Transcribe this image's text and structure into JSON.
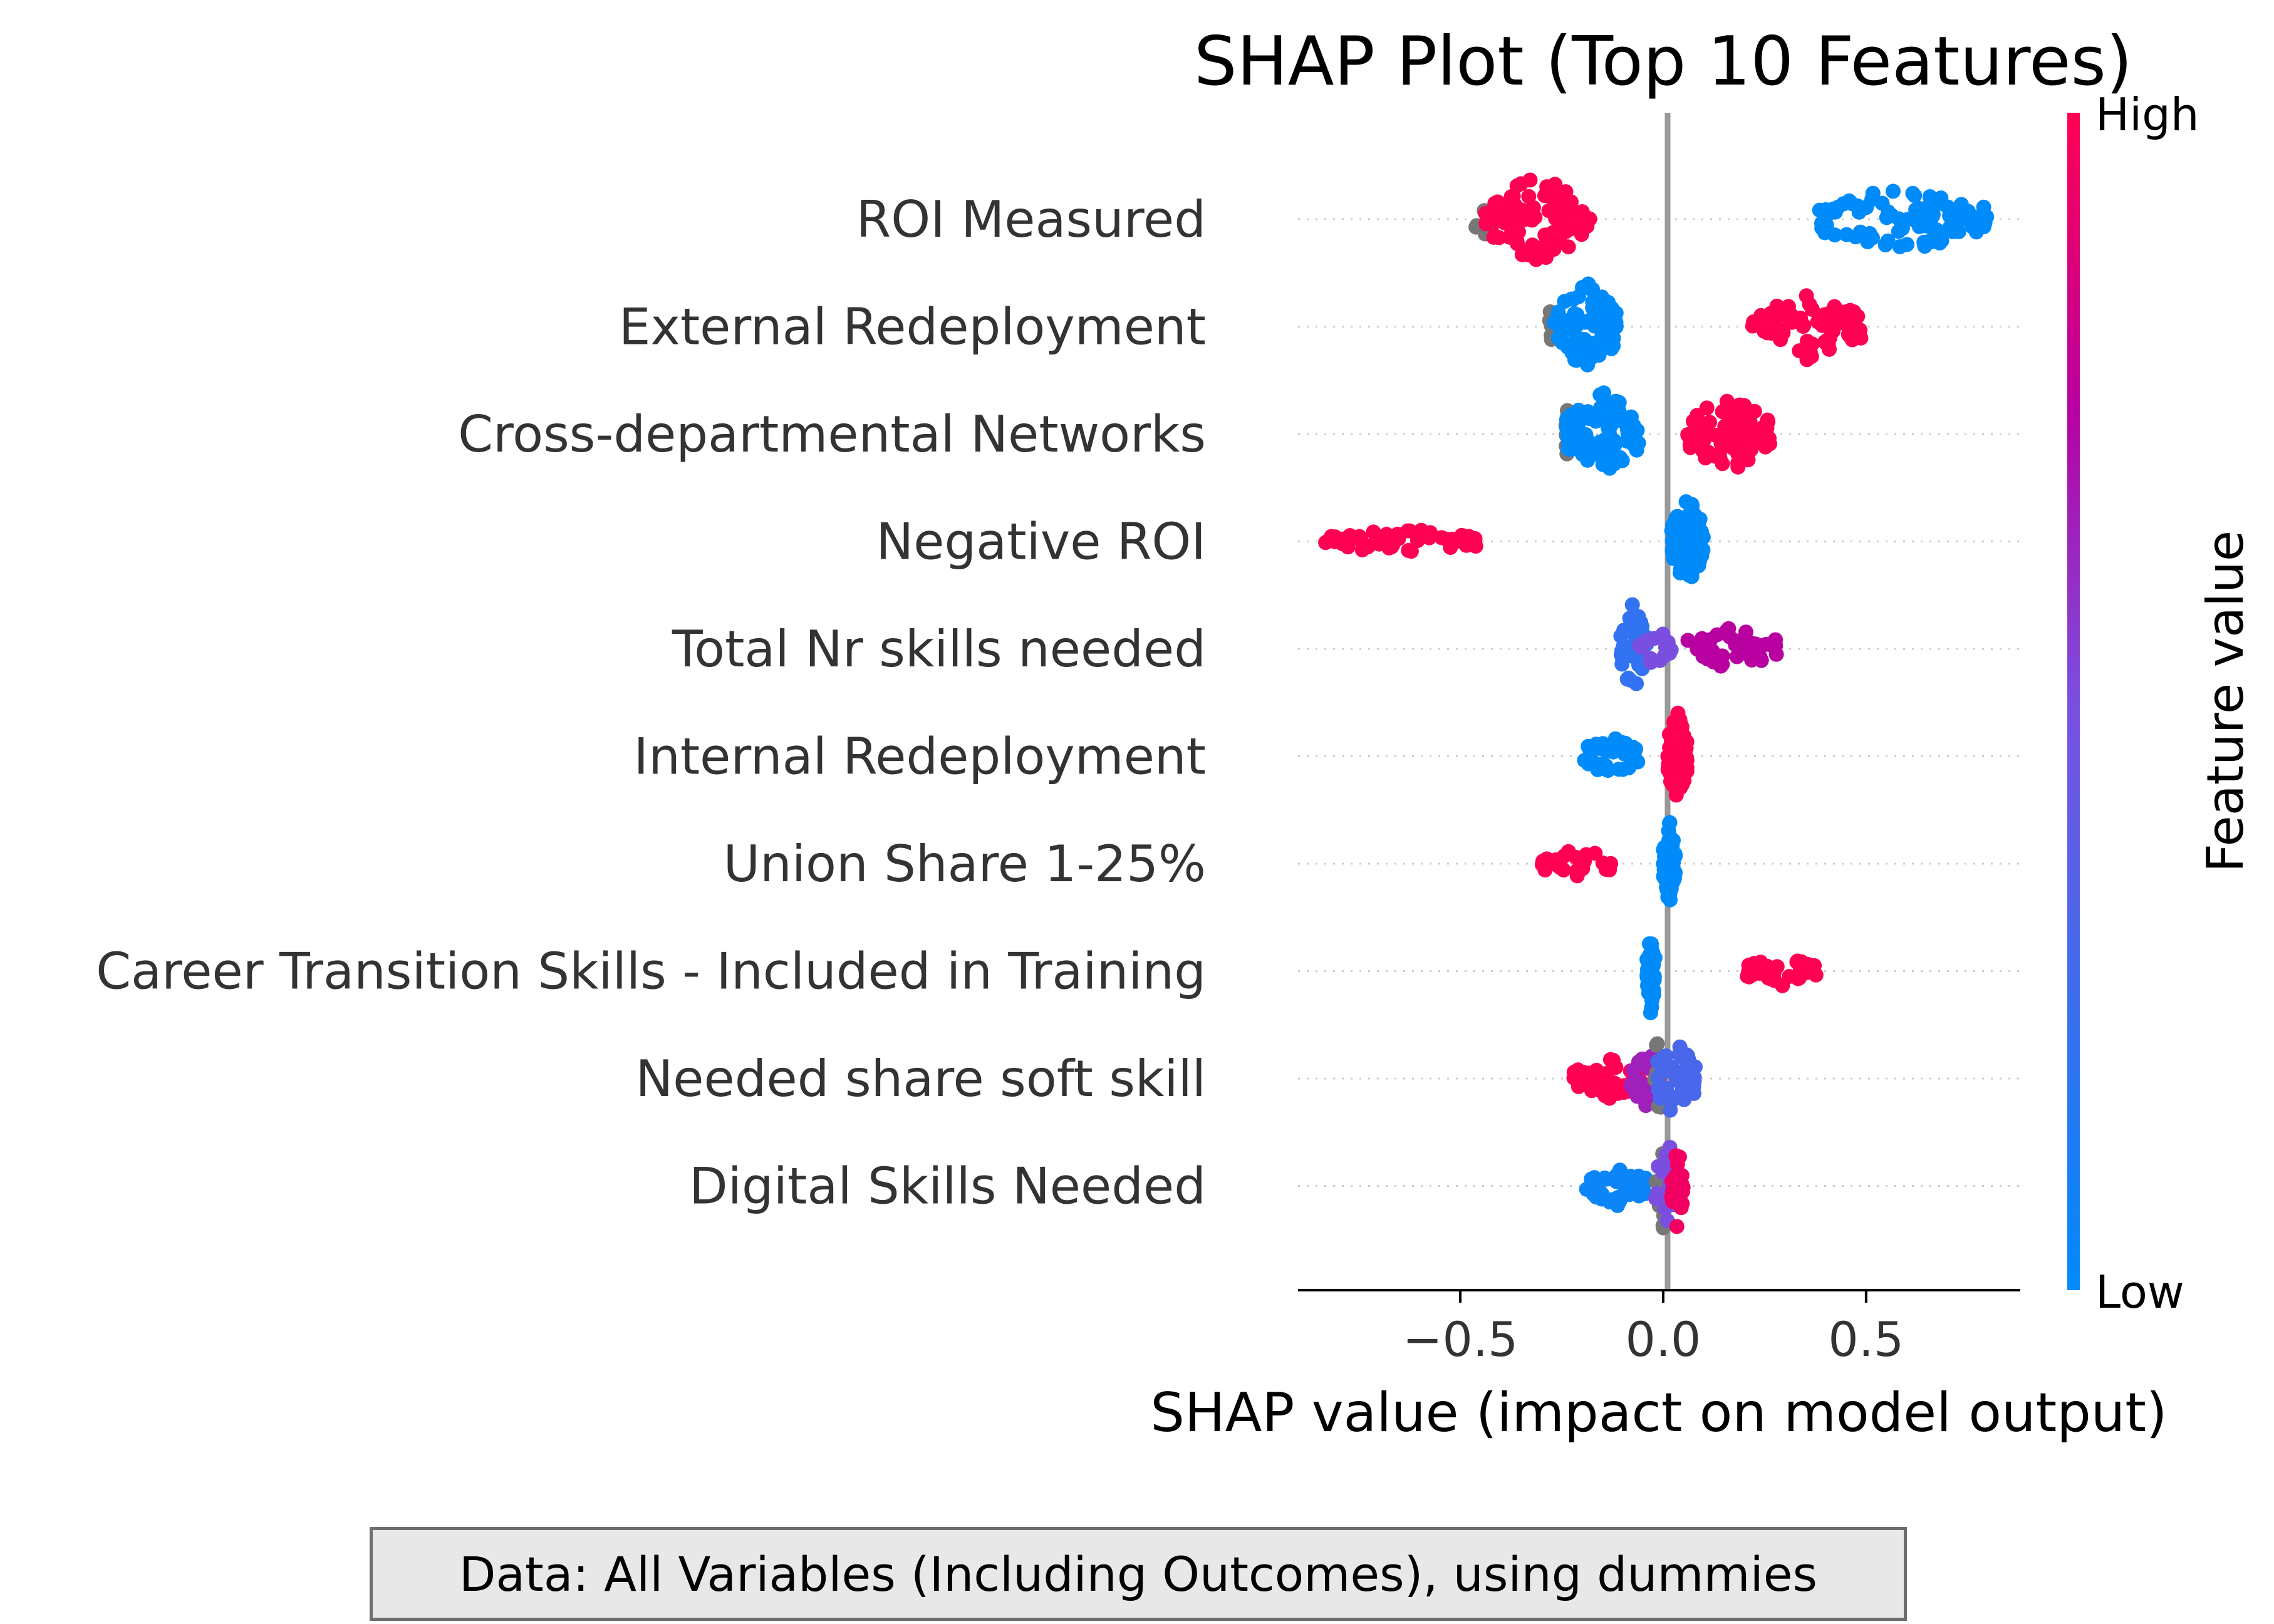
{
  "caption": "Data: All Variables (Including Outcomes), using dummies",
  "chart_data": {
    "type": "scatter",
    "subtype": "shap-beeswarm",
    "title": "SHAP Plot (Top 10 Features)",
    "xlabel": "SHAP value (impact on model output)",
    "xlim": [
      -0.9,
      0.88
    ],
    "xticks": [
      -0.5,
      0.0,
      0.5
    ],
    "xtick_labels": [
      "−0.5",
      "0.0",
      "0.5"
    ],
    "zero_line": 0.0,
    "grid": false,
    "colorbar": {
      "label": "Feature value",
      "high_label": "High",
      "low_label": "Low",
      "high_color": "#ff0052",
      "low_color": "#008bfb",
      "missing_color": "#777777",
      "placement": "right"
    },
    "features": [
      {
        "name": "ROI Measured",
        "clusters": [
          {
            "min": -0.47,
            "max": -0.42,
            "value": "missing",
            "n": 10,
            "spread": 0.4
          },
          {
            "min": -0.44,
            "max": -0.18,
            "value": 1.0,
            "n": 90,
            "spread": 1.0
          },
          {
            "min": 0.38,
            "max": 0.8,
            "value": 0.0,
            "n": 90,
            "spread": 0.75
          }
        ]
      },
      {
        "name": "External Redeployment",
        "clusters": [
          {
            "min": -0.28,
            "max": -0.26,
            "value": "missing",
            "n": 8,
            "spread": 0.8
          },
          {
            "min": -0.27,
            "max": -0.11,
            "value": 0.0,
            "n": 80,
            "spread": 1.0
          },
          {
            "min": 0.22,
            "max": 0.49,
            "value": 1.0,
            "n": 75,
            "spread": 0.75
          }
        ]
      },
      {
        "name": "Cross-departmental Networks",
        "clusters": [
          {
            "min": -0.24,
            "max": -0.23,
            "value": "missing",
            "n": 8,
            "spread": 0.9
          },
          {
            "min": -0.24,
            "max": -0.06,
            "value": 0.0,
            "n": 90,
            "spread": 1.0
          },
          {
            "min": 0.06,
            "max": 0.27,
            "value": 1.0,
            "n": 80,
            "spread": 0.9
          }
        ]
      },
      {
        "name": "Negative ROI",
        "clusters": [
          {
            "min": -0.84,
            "max": -0.45,
            "value": 1.0,
            "n": 55,
            "spread": 0.3
          },
          {
            "min": 0.02,
            "max": 0.1,
            "value": 0.0,
            "n": 70,
            "spread": 1.0
          }
        ]
      },
      {
        "name": "Total Nr skills needed",
        "clusters": [
          {
            "min": -0.11,
            "max": -0.04,
            "value": 0.2,
            "n": 45,
            "spread": 1.0
          },
          {
            "min": -0.06,
            "max": 0.02,
            "value": 0.5,
            "n": 15,
            "spread": 0.5
          },
          {
            "min": 0.06,
            "max": 0.28,
            "value": 0.75,
            "n": 45,
            "spread": 0.55
          }
        ]
      },
      {
        "name": "Internal Redeployment",
        "clusters": [
          {
            "min": -0.2,
            "max": -0.06,
            "value": 0.0,
            "n": 35,
            "spread": 0.45
          },
          {
            "min": 0.01,
            "max": 0.06,
            "value": 1.0,
            "n": 70,
            "spread": 1.0
          }
        ]
      },
      {
        "name": "Union Share 1-25%",
        "clusters": [
          {
            "min": -0.3,
            "max": -0.12,
            "value": 1.0,
            "n": 30,
            "spread": 0.35
          },
          {
            "min": 0.0,
            "max": 0.03,
            "value": 0.0,
            "n": 60,
            "spread": 1.0
          }
        ]
      },
      {
        "name": "Career Transition Skills - Included in Training",
        "clusters": [
          {
            "min": -0.04,
            "max": -0.02,
            "value": 0.0,
            "n": 45,
            "spread": 1.0
          },
          {
            "min": 0.19,
            "max": 0.38,
            "value": 1.0,
            "n": 35,
            "spread": 0.35
          }
        ]
      },
      {
        "name": "Needed share soft skill",
        "clusters": [
          {
            "min": -0.22,
            "max": -0.05,
            "value": 1.0,
            "n": 45,
            "spread": 0.45
          },
          {
            "min": -0.08,
            "max": 0.0,
            "value": 0.65,
            "n": 30,
            "spread": 0.7
          },
          {
            "min": -0.03,
            "max": 0.01,
            "value": "missing",
            "n": 12,
            "spread": 1.0
          },
          {
            "min": -0.02,
            "max": 0.08,
            "value": 0.3,
            "n": 40,
            "spread": 0.9
          }
        ]
      },
      {
        "name": "Digital Skills Needed",
        "clusters": [
          {
            "min": -0.19,
            "max": -0.04,
            "value": 0.05,
            "n": 40,
            "spread": 0.45
          },
          {
            "min": -0.02,
            "max": 0.02,
            "value": "missing",
            "n": 12,
            "spread": 1.0
          },
          {
            "min": -0.02,
            "max": 0.04,
            "value": 0.5,
            "n": 40,
            "spread": 1.0
          },
          {
            "min": 0.02,
            "max": 0.05,
            "value": 0.95,
            "n": 25,
            "spread": 1.0
          }
        ]
      }
    ]
  }
}
